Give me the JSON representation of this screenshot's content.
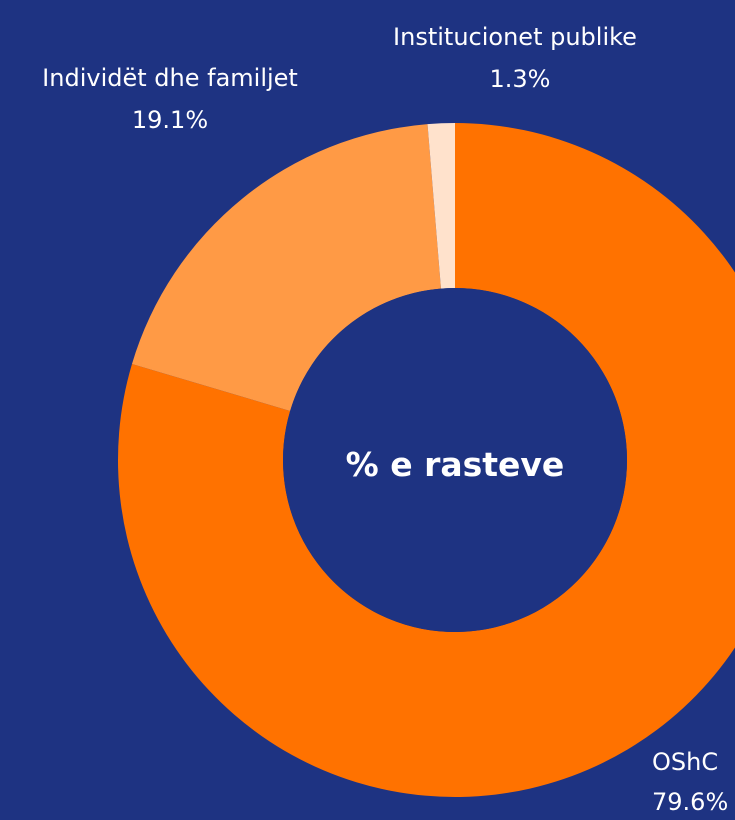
{
  "background": "#1e3382",
  "chart_data": {
    "type": "pie",
    "donut": true,
    "center_label": "% e rasteve",
    "categories": [
      "OShC",
      "Individët dhe familjet",
      "Institucionet publike"
    ],
    "values": [
      79.6,
      19.1,
      1.3
    ],
    "value_labels": [
      "79.6%",
      "19.1%",
      "1.3%"
    ],
    "colors": [
      "#ff7200",
      "#ff9a45",
      "#ffe2cc"
    ],
    "text_color": "#ffffff",
    "center_label_color": "#ffffff",
    "start_angle_deg": 0,
    "direction": "clockwise"
  }
}
